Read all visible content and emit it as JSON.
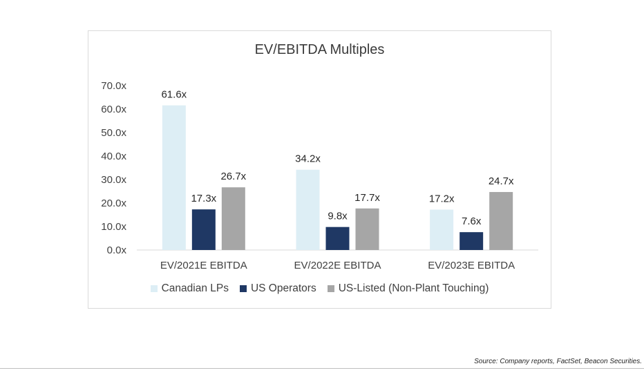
{
  "chart_data": {
    "type": "bar",
    "title": "EV/EBITDA Multiples",
    "categories": [
      "EV/2021E EBITDA",
      "EV/2022E EBITDA",
      "EV/2023E EBITDA"
    ],
    "series": [
      {
        "name": "Canadian LPs",
        "color": "#ddeef5",
        "values": [
          61.6,
          34.2,
          17.2
        ],
        "labels": [
          "61.6x",
          "34.2x",
          "17.2x"
        ]
      },
      {
        "name": "US Operators",
        "color": "#1f3864",
        "values": [
          17.3,
          9.8,
          7.6
        ],
        "labels": [
          "17.3x",
          "9.8x",
          "7.6x"
        ]
      },
      {
        "name": "US-Listed (Non-Plant Touching)",
        "color": "#a6a6a6",
        "values": [
          26.7,
          17.7,
          24.7
        ],
        "labels": [
          "26.7x",
          "17.7x",
          "24.7x"
        ]
      }
    ],
    "ylim": [
      0,
      70
    ],
    "yticks": [
      0,
      10,
      20,
      30,
      40,
      50,
      60,
      70
    ],
    "ytick_labels": [
      "0.0x",
      "10.0x",
      "20.0x",
      "30.0x",
      "40.0x",
      "50.0x",
      "60.0x",
      "70.0x"
    ],
    "xlabel": "",
    "ylabel": "",
    "grid": false,
    "legend_position": "bottom"
  },
  "footer": {
    "source": "Source: Company reports, FactSet, Beacon Securities."
  }
}
